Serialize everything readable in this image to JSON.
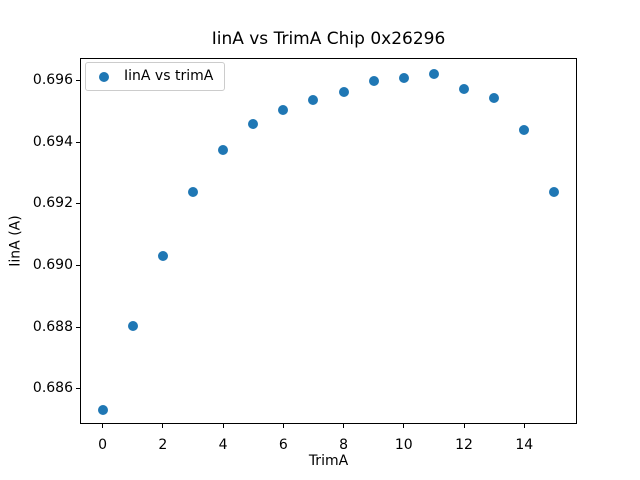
{
  "figure": {
    "background": "#ffffff"
  },
  "chart_data": {
    "type": "scatter",
    "title": "IinA vs TrimA Chip 0x26296",
    "xlabel": "TrimA",
    "ylabel": "IinA (A)",
    "grid": false,
    "legend": {
      "position": "upper left",
      "entries": [
        {
          "label": "IinA vs trimA",
          "marker": "dot",
          "color": "#1f77b4"
        }
      ]
    },
    "series": [
      {
        "name": "IinA vs trimA",
        "color": "#1f77b4",
        "x": [
          0,
          1,
          2,
          3,
          4,
          5,
          6,
          7,
          8,
          9,
          10,
          11,
          12,
          13,
          14,
          15
        ],
        "y": [
          0.68533,
          0.68805,
          0.6903,
          0.69237,
          0.69375,
          0.6946,
          0.69505,
          0.69536,
          0.69564,
          0.69597,
          0.69608,
          0.69621,
          0.69572,
          0.69543,
          0.69439,
          0.6924
        ]
      }
    ],
    "xlim": [
      -0.75,
      15.75
    ],
    "ylim": [
      0.68486,
      0.69673
    ],
    "xticks": {
      "values": [
        0,
        2,
        4,
        6,
        8,
        10,
        12,
        14
      ],
      "labels": [
        "0",
        "2",
        "4",
        "6",
        "8",
        "10",
        "12",
        "14"
      ]
    },
    "yticks": {
      "values": [
        0.686,
        0.688,
        0.69,
        0.692,
        0.694,
        0.696
      ],
      "labels": [
        "0.686",
        "0.688",
        "0.690",
        "0.692",
        "0.694",
        "0.696"
      ]
    },
    "marker_size_px": 10,
    "spine_color": "#000000"
  }
}
